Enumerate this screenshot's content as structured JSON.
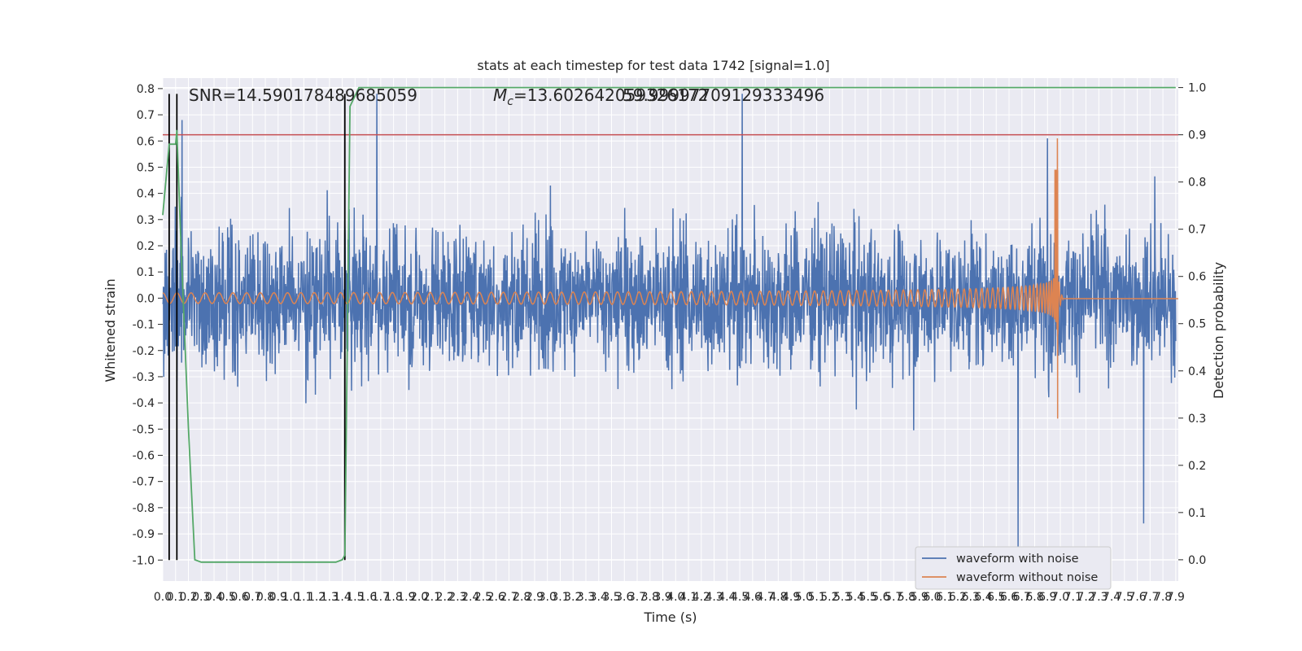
{
  "chart_data": {
    "type": "line",
    "title": "stats at each timestep for test data 1742 [signal=1.0]",
    "xlabel": "Time (s)",
    "ylabel": "Whitened strain",
    "y2label": "Detection probability",
    "xlim": [
      0.0,
      7.92
    ],
    "ylim": [
      -1.08,
      0.84
    ],
    "y2lim": [
      -0.045,
      1.02
    ],
    "grid": true,
    "x_ticks": [
      "0.0",
      "0.1",
      "0.2",
      "0.3",
      "0.4",
      "0.5",
      "0.6",
      "0.7",
      "0.8",
      "0.9",
      "1.0",
      "1.1",
      "1.2",
      "1.3",
      "1.4",
      "1.5",
      "1.6",
      "1.7",
      "1.8",
      "1.9",
      "2.0",
      "2.1",
      "2.2",
      "2.3",
      "2.4",
      "2.5",
      "2.6",
      "2.7",
      "2.8",
      "2.9",
      "3.0",
      "3.1",
      "3.2",
      "3.3",
      "3.4",
      "3.5",
      "3.6",
      "3.7",
      "3.8",
      "3.9",
      "4.0",
      "4.1",
      "4.2",
      "4.3",
      "4.4",
      "4.5",
      "4.6",
      "4.7",
      "4.8",
      "4.9",
      "5.0",
      "5.1",
      "5.2",
      "5.3",
      "5.4",
      "5.5",
      "5.6",
      "5.7",
      "5.8",
      "5.9",
      "6.0",
      "6.1",
      "6.2",
      "6.3",
      "6.4",
      "6.5",
      "6.6",
      "6.7",
      "6.8",
      "6.9",
      "7.0",
      "7.1",
      "7.2",
      "7.3",
      "7.4",
      "7.5",
      "7.6",
      "7.7",
      "7.8",
      "7.9"
    ],
    "y_ticks": [
      "0.8",
      "0.7",
      "0.6",
      "0.5",
      "0.4",
      "0.3",
      "0.2",
      "0.1",
      "0.0",
      "-0.1",
      "-0.2",
      "-0.3",
      "-0.4",
      "-0.5",
      "-0.6",
      "-0.7",
      "-0.8",
      "-0.9",
      "-1.0"
    ],
    "y2_ticks": [
      "1.0",
      "0.9",
      "0.8",
      "0.7",
      "0.6",
      "0.5",
      "0.4",
      "0.3",
      "0.2",
      "0.1",
      "0.0"
    ],
    "annotations": {
      "snr": "SNR=14.590178489685059",
      "mc": "=13.602642059326172",
      "mc_symbol": "M",
      "mc_sub": "c",
      "extra": "59.99997709129333496"
    },
    "threshold": {
      "y2": 0.9,
      "color": "#c44e52"
    },
    "vlines": [
      0.05,
      0.11,
      1.42
    ],
    "vline_range": [
      -1.0,
      0.78
    ],
    "detection_probability": {
      "x": [
        0.0,
        0.05,
        0.1,
        0.11,
        0.14,
        0.2,
        0.25,
        0.3,
        1.35,
        1.4,
        1.42,
        1.46,
        1.53,
        1.6,
        7.9
      ],
      "y": [
        0.73,
        0.88,
        0.88,
        0.91,
        0.68,
        0.28,
        0.0,
        -0.005,
        -0.005,
        0.0,
        0.01,
        0.96,
        1.0,
        1.0,
        1.0
      ],
      "color": "#55a868"
    },
    "series": [
      {
        "name": "waveform with noise",
        "color": "#4c72b0",
        "amplitude": 0.29,
        "peaks": [
          {
            "x": 0.15,
            "y": 0.68
          },
          {
            "x": 1.67,
            "y": 0.78
          },
          {
            "x": 4.52,
            "y": 0.78
          },
          {
            "x": 6.67,
            "y": -0.95
          },
          {
            "x": 6.9,
            "y": 0.61
          },
          {
            "x": 7.65,
            "y": -0.86
          }
        ]
      },
      {
        "name": "waveform without noise",
        "color": "#dd8452",
        "amplitude": 0.02,
        "merger_time": 6.98,
        "peak_positive": 0.61,
        "peak_negative": -0.46
      }
    ],
    "legend": {
      "placement": "lower-right",
      "entries": [
        "waveform with noise",
        "waveform without noise"
      ]
    }
  }
}
